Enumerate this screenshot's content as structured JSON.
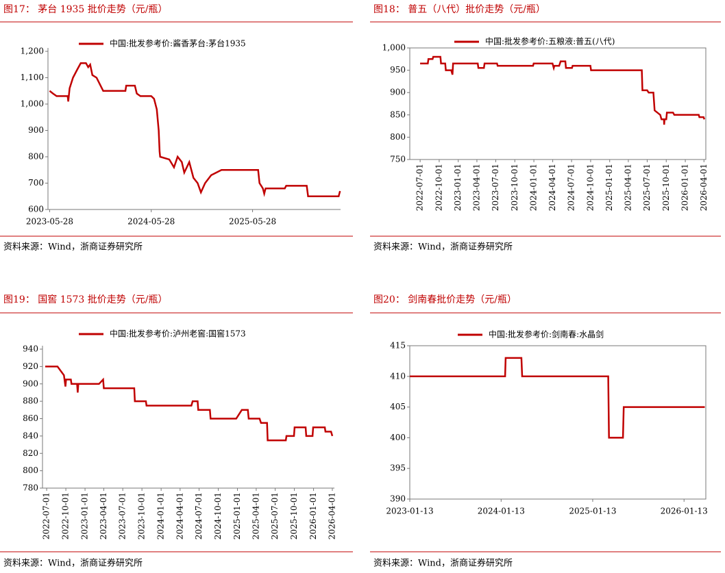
{
  "chart_data": [
    {
      "type": "line",
      "title": "图17： 茅台 1935 批价走势（元/瓶）",
      "source": "资料来源：Wind，浙商证券研究所",
      "x": [
        "2023-05-28",
        "2023-06-09",
        "2023-06-22",
        "2023-08-01",
        "2023-08-03",
        "2023-08-08",
        "2023-08-20",
        "2023-09-04",
        "2023-09-17",
        "2023-10-06",
        "2023-10-14",
        "2023-10-21",
        "2023-10-29",
        "2023-11-13",
        "2023-12-07",
        "2024-02-25",
        "2024-02-28",
        "2024-03-30",
        "2024-04-06",
        "2024-04-19",
        "2024-05-28",
        "2024-06-07",
        "2024-06-17",
        "2024-06-24",
        "2024-06-27",
        "2024-06-29",
        "2024-08-01",
        "2024-08-18",
        "2024-08-31",
        "2024-09-15",
        "2024-09-24",
        "2024-10-12",
        "2024-10-27",
        "2024-11-11",
        "2024-11-23",
        "2024-12-08",
        "2024-12-30",
        "2025-02-05",
        "2025-06-17",
        "2025-06-22",
        "2025-07-04",
        "2025-07-09",
        "2025-07-14",
        "2025-09-21",
        "2025-09-26",
        "2025-12-09",
        "2025-12-14",
        "2026-04-03",
        "2026-04-08"
      ],
      "series": [
        {
          "name": "中国:批发参考价:酱香茅台:茅台1935",
          "color": "#c00000",
          "values": [
            1050,
            1040,
            1030,
            1030,
            1010,
            1060,
            1100,
            1130,
            1155,
            1155,
            1140,
            1150,
            1110,
            1100,
            1050,
            1050,
            1070,
            1070,
            1040,
            1030,
            1030,
            1020,
            980,
            900,
            820,
            800,
            790,
            760,
            800,
            780,
            740,
            780,
            720,
            700,
            665,
            700,
            730,
            750,
            750,
            700,
            680,
            660,
            680,
            680,
            690,
            690,
            650,
            650,
            670
          ]
        }
      ],
      "xlim": [
        "2023-05-22",
        "2026-04-10"
      ],
      "xticks": [
        "2023-05-28",
        "2024-05-28",
        "2025-05-28"
      ],
      "ylim": [
        600,
        1200
      ],
      "yticks": [
        600,
        700,
        800,
        900,
        {
          "value": 1000,
          "label": "1,000"
        },
        {
          "value": 1100,
          "label": "1,100"
        },
        {
          "value": 1200,
          "label": "1,200"
        }
      ]
    },
    {
      "type": "line",
      "title": "图18： 普五（八代）批价走势（元/瓶）",
      "source": "资料来源：Wind，浙商证券研究所",
      "x": [
        "2022-07-01",
        "2022-08-07",
        "2022-08-10",
        "2022-08-30",
        "2022-09-02",
        "2022-10-07",
        "2022-10-10",
        "2022-10-30",
        "2022-11-02",
        "2022-11-28",
        "2022-12-04",
        "2022-12-07",
        "2023-04-05",
        "2023-04-08",
        "2023-05-05",
        "2023-05-08",
        "2023-07-07",
        "2023-07-10",
        "2023-12-28",
        "2023-12-31",
        "2024-03-31",
        "2024-04-06",
        "2024-04-09",
        "2024-05-02",
        "2024-05-09",
        "2024-06-01",
        "2024-06-04",
        "2024-07-03",
        "2024-07-06",
        "2024-09-30",
        "2024-10-03",
        "2025-06-05",
        "2025-06-08",
        "2025-07-01",
        "2025-07-08",
        "2025-07-31",
        "2025-08-06",
        "2025-09-02",
        "2025-09-08",
        "2025-09-20",
        "2025-09-21",
        "2025-09-23",
        "2025-10-01",
        "2025-10-04",
        "2025-11-03",
        "2025-11-09",
        "2026-03-07",
        "2026-03-10",
        "2026-03-30",
        "2026-04-03"
      ],
      "series": [
        {
          "name": "中国:批发参考价:五粮液:普五(八代)",
          "color": "#c00000",
          "values": [
            965,
            965,
            975,
            975,
            980,
            980,
            965,
            965,
            950,
            950,
            940,
            965,
            965,
            955,
            955,
            965,
            965,
            960,
            960,
            965,
            965,
            955,
            960,
            960,
            970,
            970,
            955,
            955,
            960,
            960,
            950,
            950,
            905,
            905,
            900,
            900,
            860,
            850,
            840,
            840,
            828,
            840,
            840,
            855,
            855,
            850,
            850,
            845,
            845,
            840
          ]
        }
      ],
      "xlim": [
        "2022-05-12",
        "2026-04-10"
      ],
      "xticks": [
        "2022-07-01",
        "2022-10-01",
        "2023-01-01",
        "2023-04-01",
        "2023-07-01",
        "2023-10-01",
        "2024-01-01",
        "2024-04-01",
        "2024-07-01",
        "2024-10-01",
        "2025-01-01",
        "2025-04-01",
        "2025-07-01",
        "2025-10-01",
        "2026-01-01",
        "2026-04-01"
      ],
      "ylim": [
        750,
        1000
      ],
      "yticks": [
        750,
        800,
        850,
        900,
        950,
        {
          "value": 1000,
          "label": "1,000"
        }
      ]
    },
    {
      "type": "line",
      "title": "图19： 国窖 1573 批价走势（元/瓶）",
      "source": "资料来源：Wind，浙商证券研究所",
      "x": [
        "2022-06-24",
        "2022-08-22",
        "2022-09-22",
        "2022-09-29",
        "2022-10-02",
        "2022-10-25",
        "2022-10-28",
        "2022-11-24",
        "2022-11-27",
        "2022-11-30",
        "2023-03-09",
        "2023-03-29",
        "2023-04-01",
        "2023-08-25",
        "2023-08-28",
        "2023-10-20",
        "2023-10-23",
        "2024-05-25",
        "2024-05-31",
        "2024-06-24",
        "2024-06-27",
        "2024-08-22",
        "2024-08-25",
        "2024-12-26",
        "2025-01-22",
        "2025-02-20",
        "2025-02-24",
        "2025-04-17",
        "2025-04-24",
        "2025-05-23",
        "2025-05-26",
        "2025-08-21",
        "2025-08-24",
        "2025-09-29",
        "2025-10-02",
        "2025-11-24",
        "2025-11-27",
        "2025-12-27",
        "2025-12-30",
        "2026-02-24",
        "2026-02-27",
        "2026-03-26",
        "2026-04-01"
      ],
      "series": [
        {
          "name": "中国:批发参考价:泸州老窖:国窖1573",
          "color": "#c00000",
          "values": [
            920,
            920,
            910,
            897,
            905,
            905,
            900,
            900,
            890,
            900,
            900,
            905,
            895,
            895,
            880,
            880,
            875,
            875,
            880,
            880,
            870,
            870,
            860,
            860,
            870,
            870,
            860,
            860,
            855,
            855,
            835,
            835,
            840,
            840,
            850,
            850,
            840,
            840,
            850,
            850,
            845,
            845,
            840
          ]
        }
      ],
      "xlim": [
        "2022-06-11",
        "2026-04-11"
      ],
      "xticks": [
        "2022-07-01",
        "2022-10-01",
        "2023-01-01",
        "2023-04-01",
        "2023-07-01",
        "2023-10-01",
        "2024-01-01",
        "2024-04-01",
        "2024-07-01",
        "2024-10-01",
        "2025-01-01",
        "2025-04-01",
        "2025-07-01",
        "2025-10-01",
        "2026-01-01",
        "2026-04-01"
      ],
      "ylim": [
        780,
        940
      ],
      "yticks": [
        780,
        800,
        820,
        840,
        860,
        880,
        900,
        920,
        940
      ]
    },
    {
      "type": "line",
      "title": "图20： 剑南春批价走势（元/瓶）",
      "source": "资料来源：Wind，浙商证券研究所",
      "x": [
        "2023-01-13",
        "2024-01-29",
        "2024-01-31",
        "2024-04-03",
        "2024-04-06",
        "2025-03-16",
        "2025-03-19",
        "2025-05-14",
        "2025-05-17",
        "2026-04-06"
      ],
      "series": [
        {
          "name": "中国:批发参考价:剑南春:水晶剑",
          "color": "#c00000",
          "values": [
            410,
            410,
            413,
            413,
            410,
            410,
            400,
            400,
            405,
            405
          ]
        }
      ],
      "xlim": [
        "2023-01-13",
        "2026-04-10"
      ],
      "xticks": [
        "2023-01-13",
        "2024-01-13",
        "2025-01-13",
        "2026-01-13"
      ],
      "ylim": [
        390,
        415
      ],
      "yticks": [
        390,
        395,
        400,
        405,
        410,
        415
      ]
    }
  ]
}
